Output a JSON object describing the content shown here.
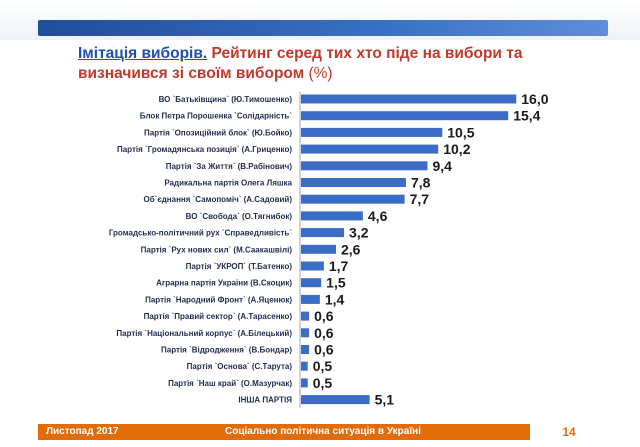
{
  "title": {
    "lead": "Імітація виборів.",
    "rest": " Рейтинг серед тих хто піде на вибори та визначився зі своїм вибором ",
    "unit": "(%)"
  },
  "footer": {
    "date": "Листопад 2017",
    "subject": "Соціально політична ситуація в Україні",
    "page": "14"
  },
  "colors": {
    "bar": "#3b6cc6",
    "footer": "#e36c0a",
    "accent": "#c0392b"
  },
  "chart_data": {
    "type": "bar",
    "orientation": "horizontal",
    "categories": [
      "ВО `Батьківщина` (Ю.Тимошенко)",
      "Блок Петра Порошенка `Солідарність`",
      "Партія `Опозиційний блок` (Ю.Бойко)",
      "Партія `Громадянська позиція` (А.Гриценко)",
      "Партія `За Життя` (В.Рабінович)",
      "Радикальна партія Олега Ляшка",
      "Об`єднання `Самопоміч` (А.Садовий)",
      "ВО `Свобода` (О.Тягнибок)",
      "Громадсько-політичний рух `Справедливість`",
      "Партія `Рух нових сил` (М.Саакашвілі)",
      "Партія `УКРОП` (Т.Батенко)",
      "Аграрна партія України (В.Скоцик)",
      "Партія `Народний Фронт` (А.Яценюк)",
      "Партія `Правий сектор` (А.Тарасенко)",
      "Партія `Національний корпус` (А.Білецький)",
      "Партія `Відродження` (В.Бондар)",
      "Партія `Основа` (С.Тарута)",
      "Партія `Наш край` (О.Мазурчак)",
      "ІНША ПАРТІЯ"
    ],
    "values": [
      16.0,
      15.4,
      10.5,
      10.2,
      9.4,
      7.8,
      7.7,
      4.6,
      3.2,
      2.6,
      1.7,
      1.5,
      1.4,
      0.6,
      0.6,
      0.6,
      0.5,
      0.5,
      5.1
    ],
    "value_labels": [
      "16,0",
      "15,4",
      "10,5",
      "10,2",
      "9,4",
      "7,8",
      "7,7",
      "4,6",
      "3,2",
      "2,6",
      "1,7",
      "1,5",
      "1,4",
      "0,6",
      "0,6",
      "0,6",
      "0,5",
      "0,5",
      "5,1"
    ],
    "xlim": [
      0,
      16.5
    ],
    "grid": false,
    "legend": "none"
  }
}
